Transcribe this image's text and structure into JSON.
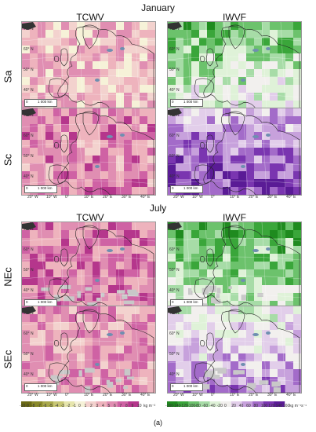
{
  "months": {
    "january": "January",
    "july": "July"
  },
  "columns": {
    "tcwv": "TCWV",
    "iwvf": "IWVF"
  },
  "rows": {
    "r1": "Sa",
    "r2": "Sc",
    "r3": "NEc",
    "r4": "SEc"
  },
  "lon_ticks": [
    "20° W",
    "10° W",
    "0°",
    "10° E",
    "20° E",
    "30° E",
    "40° E"
  ],
  "lat_ticks": [
    "70° N",
    "60° N",
    "50° N",
    "40° N"
  ],
  "scale_bar": {
    "zero": "0",
    "km": "1 000 km"
  },
  "colorbar_tcwv": {
    "ticks": [
      "-10",
      "-9",
      "-8",
      "-7",
      "-6",
      "-5",
      "-4",
      "-3",
      "-2",
      "-1",
      "0",
      "1",
      "2",
      "3",
      "4",
      "5",
      "6",
      "7",
      "8",
      "9",
      "10"
    ],
    "unit": "kg m⁻²",
    "colors": [
      "#6b6a14",
      "#8a8a2a",
      "#a9a94b",
      "#c8c775",
      "#e7e6ad",
      "#f6f2d8",
      "#f3d2ce",
      "#eeb3bd",
      "#e08eb2",
      "#cf62a4",
      "#b5368c"
    ]
  },
  "colorbar_iwvf": {
    "ticks": [
      "-160",
      "-140",
      "-120",
      "-100",
      "-80",
      "-60",
      "-40",
      "-20",
      "0",
      "20",
      "40",
      "60",
      "80",
      "100",
      "120",
      "140",
      "160"
    ],
    "unit": "kg m⁻¹s⁻¹",
    "colors": [
      "#1f8b1f",
      "#3aa63a",
      "#6cc26c",
      "#a7dca7",
      "#dff2d8",
      "#f2f0ee",
      "#e2ceea",
      "#c7a1dc",
      "#a36bc9",
      "#7a35b0",
      "#5a1b96"
    ]
  },
  "caption": "(a)"
}
